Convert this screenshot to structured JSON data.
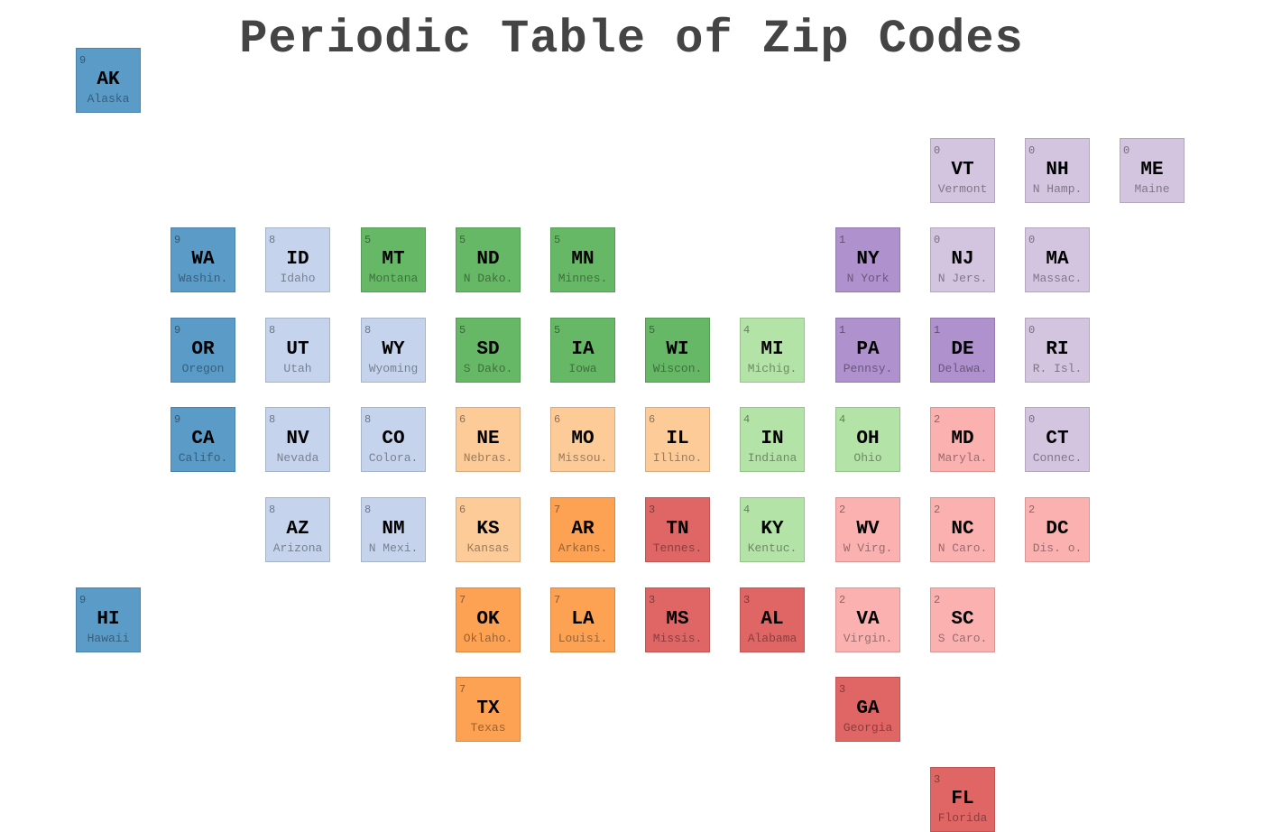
{
  "chart_data": {
    "type": "tile-grid",
    "title": "Periodic Table of Zip Codes",
    "legend": [],
    "colors": {
      "0": "#d3c4df",
      "1": "#ae91cd",
      "2": "#fcb1b1",
      "3": "#e06666",
      "4": "#b3e3a6",
      "5": "#66b866",
      "6": "#fdcb98",
      "7": "#fda153",
      "8": "#c5d4ec",
      "9": "#5b9bc8"
    },
    "tiles": [
      {
        "abbr": "AK",
        "name": "Alaska",
        "zip": "9",
        "row": 0,
        "col": 0
      },
      {
        "abbr": "VT",
        "name": "Vermont",
        "zip": "0",
        "row": 1,
        "col": 9
      },
      {
        "abbr": "NH",
        "name": "N Hamp.",
        "zip": "0",
        "row": 1,
        "col": 10
      },
      {
        "abbr": "ME",
        "name": "Maine",
        "zip": "0",
        "row": 1,
        "col": 11
      },
      {
        "abbr": "WA",
        "name": "Washin.",
        "zip": "9",
        "row": 2,
        "col": 1
      },
      {
        "abbr": "ID",
        "name": "Idaho",
        "zip": "8",
        "row": 2,
        "col": 2
      },
      {
        "abbr": "MT",
        "name": "Montana",
        "zip": "5",
        "row": 2,
        "col": 3
      },
      {
        "abbr": "ND",
        "name": "N Dako.",
        "zip": "5",
        "row": 2,
        "col": 4
      },
      {
        "abbr": "MN",
        "name": "Minnes.",
        "zip": "5",
        "row": 2,
        "col": 5
      },
      {
        "abbr": "NY",
        "name": "N York",
        "zip": "1",
        "row": 2,
        "col": 8
      },
      {
        "abbr": "NJ",
        "name": "N Jers.",
        "zip": "0",
        "row": 2,
        "col": 9
      },
      {
        "abbr": "MA",
        "name": "Massac.",
        "zip": "0",
        "row": 2,
        "col": 10
      },
      {
        "abbr": "OR",
        "name": "Oregon",
        "zip": "9",
        "row": 3,
        "col": 1
      },
      {
        "abbr": "UT",
        "name": "Utah",
        "zip": "8",
        "row": 3,
        "col": 2
      },
      {
        "abbr": "WY",
        "name": "Wyoming",
        "zip": "8",
        "row": 3,
        "col": 3
      },
      {
        "abbr": "SD",
        "name": "S Dako.",
        "zip": "5",
        "row": 3,
        "col": 4
      },
      {
        "abbr": "IA",
        "name": "Iowa",
        "zip": "5",
        "row": 3,
        "col": 5
      },
      {
        "abbr": "WI",
        "name": "Wiscon.",
        "zip": "5",
        "row": 3,
        "col": 6
      },
      {
        "abbr": "MI",
        "name": "Michig.",
        "zip": "4",
        "row": 3,
        "col": 7
      },
      {
        "abbr": "PA",
        "name": "Pennsy.",
        "zip": "1",
        "row": 3,
        "col": 8
      },
      {
        "abbr": "DE",
        "name": "Delawa.",
        "zip": "1",
        "row": 3,
        "col": 9
      },
      {
        "abbr": "RI",
        "name": "R. Isl.",
        "zip": "0",
        "row": 3,
        "col": 10
      },
      {
        "abbr": "CA",
        "name": "Califo.",
        "zip": "9",
        "row": 4,
        "col": 1
      },
      {
        "abbr": "NV",
        "name": "Nevada",
        "zip": "8",
        "row": 4,
        "col": 2
      },
      {
        "abbr": "CO",
        "name": "Colora.",
        "zip": "8",
        "row": 4,
        "col": 3
      },
      {
        "abbr": "NE",
        "name": "Nebras.",
        "zip": "6",
        "row": 4,
        "col": 4
      },
      {
        "abbr": "MO",
        "name": "Missou.",
        "zip": "6",
        "row": 4,
        "col": 5
      },
      {
        "abbr": "IL",
        "name": "Illino.",
        "zip": "6",
        "row": 4,
        "col": 6
      },
      {
        "abbr": "IN",
        "name": "Indiana",
        "zip": "4",
        "row": 4,
        "col": 7
      },
      {
        "abbr": "OH",
        "name": "Ohio",
        "zip": "4",
        "row": 4,
        "col": 8
      },
      {
        "abbr": "MD",
        "name": "Maryla.",
        "zip": "2",
        "row": 4,
        "col": 9
      },
      {
        "abbr": "CT",
        "name": "Connec.",
        "zip": "0",
        "row": 4,
        "col": 10
      },
      {
        "abbr": "AZ",
        "name": "Arizona",
        "zip": "8",
        "row": 5,
        "col": 2
      },
      {
        "abbr": "NM",
        "name": "N Mexi.",
        "zip": "8",
        "row": 5,
        "col": 3
      },
      {
        "abbr": "KS",
        "name": "Kansas",
        "zip": "6",
        "row": 5,
        "col": 4
      },
      {
        "abbr": "AR",
        "name": "Arkans.",
        "zip": "7",
        "row": 5,
        "col": 5
      },
      {
        "abbr": "TN",
        "name": "Tennes.",
        "zip": "3",
        "row": 5,
        "col": 6
      },
      {
        "abbr": "KY",
        "name": "Kentuc.",
        "zip": "4",
        "row": 5,
        "col": 7
      },
      {
        "abbr": "WV",
        "name": "W Virg.",
        "zip": "2",
        "row": 5,
        "col": 8
      },
      {
        "abbr": "NC",
        "name": "N Caro.",
        "zip": "2",
        "row": 5,
        "col": 9
      },
      {
        "abbr": "DC",
        "name": "Dis. o.",
        "zip": "2",
        "row": 5,
        "col": 10
      },
      {
        "abbr": "HI",
        "name": "Hawaii",
        "zip": "9",
        "row": 6,
        "col": 0
      },
      {
        "abbr": "OK",
        "name": "Oklaho.",
        "zip": "7",
        "row": 6,
        "col": 4
      },
      {
        "abbr": "LA",
        "name": "Louisi.",
        "zip": "7",
        "row": 6,
        "col": 5
      },
      {
        "abbr": "MS",
        "name": "Missis.",
        "zip": "3",
        "row": 6,
        "col": 6
      },
      {
        "abbr": "AL",
        "name": "Alabama",
        "zip": "3",
        "row": 6,
        "col": 7
      },
      {
        "abbr": "VA",
        "name": "Virgin.",
        "zip": "2",
        "row": 6,
        "col": 8
      },
      {
        "abbr": "SC",
        "name": "S Caro.",
        "zip": "2",
        "row": 6,
        "col": 9
      },
      {
        "abbr": "TX",
        "name": "Texas",
        "zip": "7",
        "row": 7,
        "col": 4
      },
      {
        "abbr": "GA",
        "name": "Georgia",
        "zip": "3",
        "row": 7,
        "col": 8
      },
      {
        "abbr": "FL",
        "name": "Florida",
        "zip": "3",
        "row": 8,
        "col": 9
      }
    ]
  }
}
